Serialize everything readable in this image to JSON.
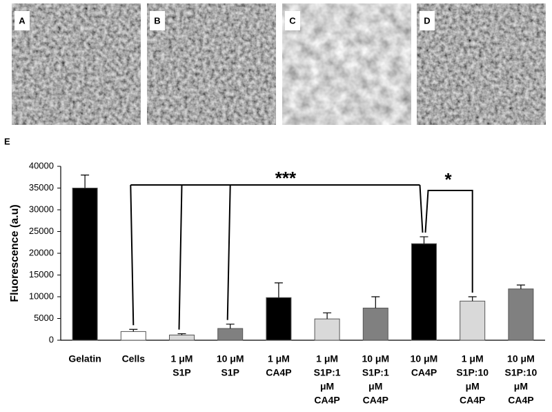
{
  "panels": [
    "A",
    "B",
    "C",
    "D"
  ],
  "chart_data": {
    "type": "bar",
    "panel_label": "E",
    "ylabel": "Fluorescence (a.u)",
    "categories": [
      [
        "Gelatin"
      ],
      [
        "Cells"
      ],
      [
        "1 μM",
        "S1P"
      ],
      [
        "10 μM",
        "S1P"
      ],
      [
        "1 μM",
        "CA4P"
      ],
      [
        "1 μM",
        "S1P:1",
        "μM",
        "CA4P"
      ],
      [
        "10 μM",
        "S1P:1",
        "μM",
        "CA4P"
      ],
      [
        "10 μM",
        "CA4P"
      ],
      [
        "1 μM",
        "S1P:10",
        "μM",
        "CA4P"
      ],
      [
        "10 μM",
        "S1P:10",
        "μM",
        "CA4P"
      ]
    ],
    "values": [
      35000,
      2000,
      1200,
      2700,
      9800,
      4900,
      7400,
      22200,
      9000,
      11800
    ],
    "errors": [
      3000,
      500,
      300,
      1000,
      3400,
      1400,
      2600,
      1600,
      1000,
      900
    ],
    "colors": [
      "#000000",
      "#ffffff",
      "#d9d9d9",
      "#808080",
      "#000000",
      "#d9d9d9",
      "#808080",
      "#000000",
      "#d9d9d9",
      "#808080"
    ],
    "ylim": [
      0,
      40000
    ],
    "yticks": [
      0,
      5000,
      10000,
      15000,
      20000,
      25000,
      30000,
      35000,
      40000
    ],
    "annotations": [
      "***",
      "*"
    ]
  }
}
